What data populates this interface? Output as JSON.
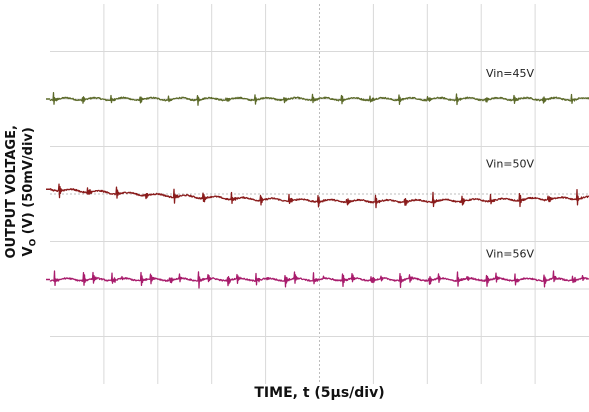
{
  "chart_data": {
    "type": "line",
    "title": "",
    "xlabel": "TIME, t (5µs/div)",
    "ylabel_line1": "OUTPUT VOLTAGE,",
    "ylabel_line2": "V",
    "ylabel_sub": "O",
    "ylabel_line2_rest": " (V) (50mV/div)",
    "x_divisions": 10,
    "y_divisions": 8,
    "x_unit_per_div": "5µs",
    "y_unit_per_div": "50mV",
    "grid": true,
    "xlim_us": [
      0,
      50
    ],
    "spike_period_us": 2.67,
    "series": [
      {
        "name": "Vin=45V",
        "color": "#5c6a2a",
        "baseline_div": 2.0,
        "spike_pp_div": 0.3,
        "phase_us": 0.3,
        "drift_div": 0.0
      },
      {
        "name": "Vin=50V",
        "color": "#8a1c1c",
        "baseline_div": 3.9,
        "spike_pp_div": 0.4,
        "phase_us": 0.8,
        "drift_div": 0.3
      },
      {
        "name": "Vin=56V",
        "color": "#a81c6c",
        "baseline_div": 5.8,
        "spike_pp_div": 0.45,
        "phase_us": 0.4,
        "drift_div": 0.0
      }
    ]
  }
}
